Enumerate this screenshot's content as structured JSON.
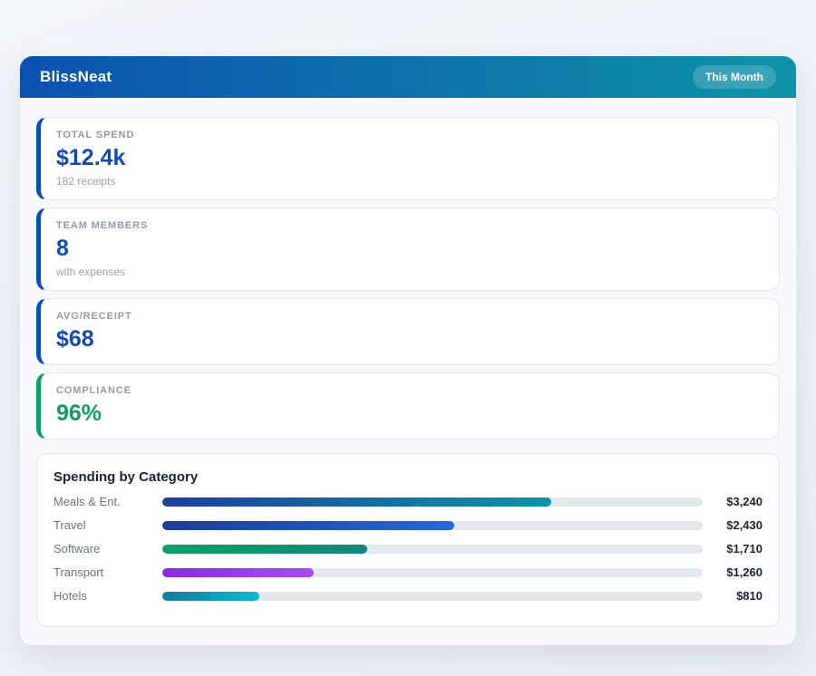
{
  "header": {
    "title": "BlissNeat",
    "badge": "This Month"
  },
  "stats": [
    {
      "label": "TOTAL SPEND",
      "value": "$12.4k",
      "sub": "182 receipts",
      "accent": "#0d4cb2"
    },
    {
      "label": "TEAM MEMBERS",
      "value": "8",
      "sub": "with expenses",
      "accent": "#0d4cb2"
    },
    {
      "label": "AVG/RECEIPT",
      "value": "$68",
      "sub": "",
      "accent": "#0d4cb2"
    },
    {
      "label": "COMPLIANCE",
      "value": "96%",
      "sub": "",
      "accent": "#0e9f62"
    }
  ],
  "chart_data": {
    "type": "bar",
    "orientation": "horizontal",
    "title": "Spending by Category",
    "categories": [
      "Meals & Ent.",
      "Travel",
      "Software",
      "Transport",
      "Hotels"
    ],
    "values": [
      3240,
      2430,
      1710,
      1260,
      810
    ],
    "value_labels": [
      "$3,240",
      "$2,430",
      "$1,710",
      "$1,260",
      "$810"
    ],
    "xlim": [
      0,
      4500
    ],
    "grid": false,
    "legend": false,
    "track_color": "#e3e8ef",
    "bar_gradients": [
      [
        "#1e3f9e",
        "#0e95a5"
      ],
      [
        "#1b3d96",
        "#2568d8"
      ],
      [
        "#0ba263",
        "#12877c"
      ],
      [
        "#8a2be2",
        "#a84aee"
      ],
      [
        "#147d9b",
        "#0cb9d6"
      ]
    ]
  },
  "theme": {
    "header_gradient": [
      "#0b51b0",
      "#0f93a8"
    ],
    "page_bg": [
      "#f2f5fa",
      "#e9eef6"
    ]
  }
}
